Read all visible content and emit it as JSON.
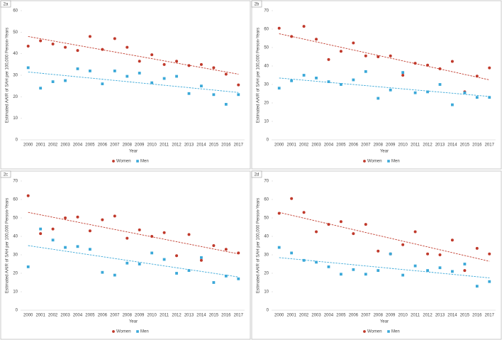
{
  "chart_data": [
    {
      "type": "scatter",
      "label": "2a",
      "xlabel": "Year",
      "ylabel": "Estimated AAIR of SAH per 100,000 Person-Years",
      "categories": [
        "2000",
        "2001",
        "2002",
        "2003",
        "2004",
        "2005",
        "2006",
        "2007",
        "2008",
        "2009",
        "2010",
        "2011",
        "2012",
        "2013",
        "2014",
        "2015",
        "2016",
        "2017"
      ],
      "ylim": [
        0,
        60
      ],
      "yticks": [
        0,
        10,
        20,
        30,
        40,
        50,
        60
      ],
      "grid": false,
      "series": [
        {
          "name": "Women",
          "color": "#c0392b",
          "marker": "circle",
          "values": [
            43.5,
            46,
            44.5,
            43,
            41.5,
            48,
            42,
            47,
            43,
            36.5,
            39.5,
            35,
            36.5,
            34.5,
            35,
            33.5,
            30.5,
            25.5
          ],
          "trendline": [
            48,
            30.5
          ]
        },
        {
          "name": "Men",
          "color": "#3aa8d8",
          "marker": "square",
          "values": [
            33.5,
            24,
            27,
            27.5,
            33,
            32,
            26,
            32,
            29.5,
            31,
            26.5,
            28.5,
            29.5,
            21.5,
            25,
            21,
            16.5,
            21
          ],
          "trendline": [
            31.5,
            22
          ]
        }
      ]
    },
    {
      "type": "scatter",
      "label": "2b",
      "xlabel": "Year",
      "ylabel": "Estimated AAIR of SAH per 100,000 Person-Years",
      "categories": [
        "2000",
        "2001",
        "2002",
        "2003",
        "2004",
        "2005",
        "2006",
        "2007",
        "2008",
        "2009",
        "2010",
        "2011",
        "2012",
        "2013",
        "2014",
        "2015",
        "2016",
        "2017"
      ],
      "ylim": [
        0,
        70
      ],
      "yticks": [
        0,
        10,
        20,
        30,
        40,
        50,
        60,
        70
      ],
      "grid": false,
      "series": [
        {
          "name": "Women",
          "color": "#c0392b",
          "marker": "circle",
          "values": [
            60.5,
            56,
            61.5,
            54.5,
            43.5,
            48,
            52.5,
            45.5,
            45,
            45.5,
            35,
            41.5,
            40.5,
            38.5,
            42.5,
            26,
            34.5,
            39
          ],
          "trendline": [
            57.5,
            32.5
          ]
        },
        {
          "name": "Men",
          "color": "#3aa8d8",
          "marker": "square",
          "values": [
            28,
            32,
            35,
            33.5,
            31.5,
            30,
            32.5,
            37,
            22.5,
            27,
            36.5,
            25.5,
            26,
            30,
            19,
            25.5,
            23,
            23
          ],
          "trendline": [
            33.5,
            23.5
          ]
        }
      ]
    },
    {
      "type": "scatter",
      "label": "2c",
      "xlabel": "Year",
      "ylabel": "Estimated AAIR of SAH per 100,000 Person-Years",
      "categories": [
        "2000",
        "2001",
        "2002",
        "2003",
        "2004",
        "2005",
        "2006",
        "2007",
        "2008",
        "2009",
        "2010",
        "2011",
        "2012",
        "2013",
        "2014",
        "2015",
        "2016",
        "2017"
      ],
      "ylim": [
        0,
        70
      ],
      "yticks": [
        0,
        10,
        20,
        30,
        40,
        50,
        60,
        70
      ],
      "grid": false,
      "series": [
        {
          "name": "Women",
          "color": "#c0392b",
          "marker": "circle",
          "values": [
            62,
            41.5,
            44,
            50,
            50.5,
            43,
            49,
            51,
            39,
            43.5,
            40,
            42,
            29.5,
            41,
            27,
            35,
            33,
            31
          ],
          "trendline": [
            53,
            30.5
          ]
        },
        {
          "name": "Men",
          "color": "#3aa8d8",
          "marker": "square",
          "values": [
            23.5,
            44,
            38,
            34,
            34.5,
            33,
            20.5,
            19,
            25.5,
            25,
            31,
            27.5,
            20,
            21.5,
            28.5,
            15,
            18.5,
            17
          ],
          "trendline": [
            35,
            18
          ]
        }
      ]
    },
    {
      "type": "scatter",
      "label": "2d",
      "xlabel": "Year",
      "ylabel": "Estimated AAIR of SAH per 100,000 Person-Years",
      "categories": [
        "2000",
        "2001",
        "2002",
        "2003",
        "2004",
        "2005",
        "2006",
        "2007",
        "2008",
        "2009",
        "2010",
        "2011",
        "2012",
        "2013",
        "2014",
        "2015",
        "2016",
        "2017"
      ],
      "ylim": [
        0,
        70
      ],
      "yticks": [
        0,
        10,
        20,
        30,
        40,
        50,
        60,
        70
      ],
      "grid": false,
      "series": [
        {
          "name": "Women",
          "color": "#c0392b",
          "marker": "circle",
          "values": [
            52.5,
            60.5,
            53,
            42.5,
            46.5,
            48,
            41.5,
            46.5,
            32,
            30.5,
            35.5,
            42.5,
            30.5,
            30,
            38,
            21.5,
            33.5,
            30.5
          ],
          "trendline": [
            53,
            26.5
          ]
        },
        {
          "name": "Men",
          "color": "#3aa8d8",
          "marker": "square",
          "values": [
            34,
            31,
            27,
            26,
            23.5,
            19.5,
            22,
            19.5,
            21.5,
            30.5,
            19,
            24,
            21.5,
            23,
            21,
            25,
            13,
            15.5
          ],
          "trendline": [
            28.5,
            17.5
          ]
        }
      ]
    }
  ]
}
